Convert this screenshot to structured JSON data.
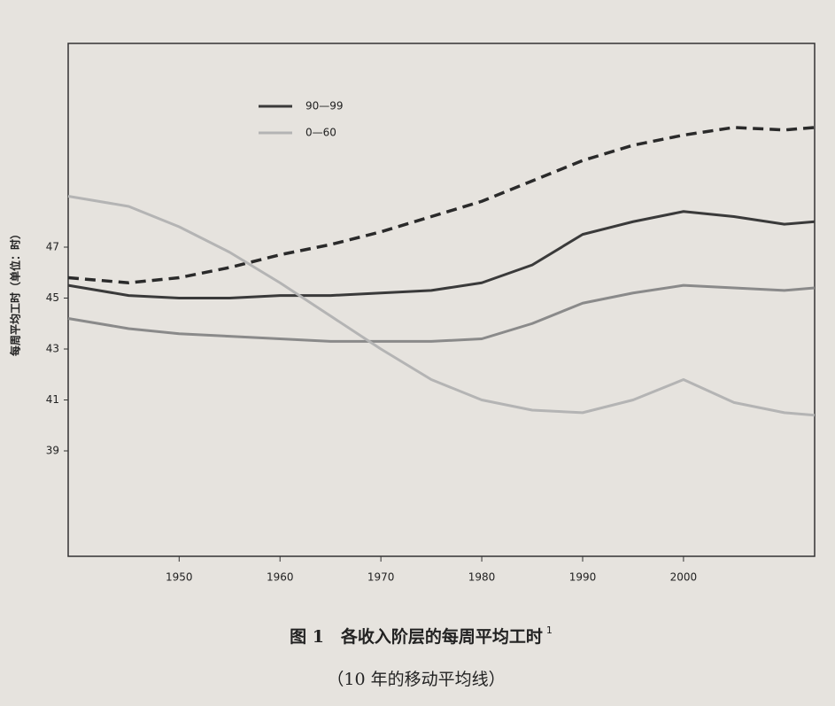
{
  "chart_data": {
    "type": "line",
    "title": "图 1　各收入阶层的每周平均工时",
    "title_note": "1",
    "subtitle": "（10 年的移动平均线）",
    "y_label": "每周平均工时（单位：时）",
    "x": [
      1939,
      1945,
      1950,
      1955,
      1960,
      1965,
      1970,
      1975,
      1980,
      1985,
      1990,
      1995,
      2000,
      2005,
      2010,
      2013
    ],
    "series": [
      {
        "color": "#2a2a2a",
        "dashed": true,
        "width": 3.5,
        "values": [
          45.8,
          45.6,
          45.8,
          46.2,
          46.7,
          47.1,
          47.6,
          48.2,
          48.8,
          49.6,
          50.4,
          51.0,
          51.4,
          51.7,
          51.6,
          51.7
        ]
      },
      {
        "name": "90—99",
        "color": "#3a3a3a",
        "width": 3,
        "values": [
          45.5,
          45.1,
          45.0,
          45.0,
          45.1,
          45.1,
          45.2,
          45.3,
          45.6,
          46.3,
          47.5,
          48.0,
          48.4,
          48.2,
          47.9,
          48.0
        ]
      },
      {
        "color": "#8a8a8a",
        "width": 3,
        "values": [
          44.2,
          43.8,
          43.6,
          43.5,
          43.4,
          43.3,
          43.3,
          43.3,
          43.4,
          44.0,
          44.8,
          45.2,
          45.5,
          45.4,
          45.3,
          45.4
        ]
      },
      {
        "name": "0—60",
        "color": "#b4b4b4",
        "width": 3,
        "values": [
          49.0,
          48.6,
          47.8,
          46.8,
          45.6,
          44.3,
          43.0,
          41.8,
          41.0,
          40.6,
          40.5,
          41.0,
          41.8,
          40.9,
          40.5,
          40.4
        ]
      }
    ],
    "xlim": [
      1939,
      2013
    ],
    "xticks": [
      1950,
      1960,
      1970,
      1980,
      1990,
      2000
    ],
    "ylim": [
      35,
      55
    ],
    "yticks": [
      39,
      41,
      43,
      45,
      47
    ]
  }
}
